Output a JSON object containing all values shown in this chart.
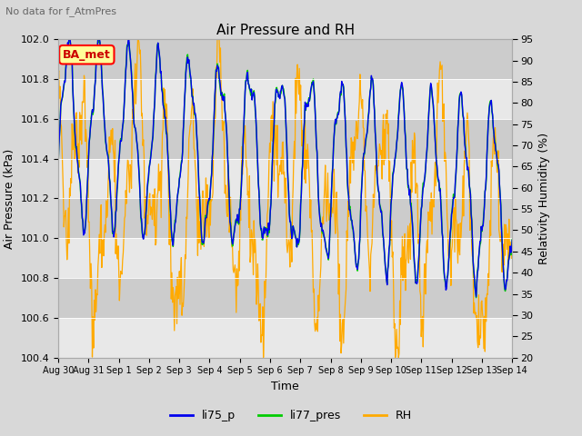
{
  "title": "Air Pressure and RH",
  "subtitle": "No data for f_AtmPres",
  "xlabel": "Time",
  "ylabel_left": "Air Pressure (kPa)",
  "ylabel_right": "Relativity Humidity (%)",
  "ylim_left": [
    100.4,
    102.0
  ],
  "ylim_right": [
    20,
    95
  ],
  "yticks_left": [
    100.4,
    100.6,
    100.8,
    101.0,
    101.2,
    101.4,
    101.6,
    101.8,
    102.0
  ],
  "yticks_right": [
    20,
    25,
    30,
    35,
    40,
    45,
    50,
    55,
    60,
    65,
    70,
    75,
    80,
    85,
    90,
    95
  ],
  "xtick_labels": [
    "Aug 30",
    "Aug 31",
    "Sep 1",
    "Sep 2",
    "Sep 3",
    "Sep 4",
    "Sep 5",
    "Sep 6",
    "Sep 7",
    "Sep 8",
    "Sep 9",
    "Sep 10",
    "Sep 11",
    "Sep 12",
    "Sep 13",
    "Sep 14"
  ],
  "legend_labels": [
    "li75_p",
    "li77_pres",
    "RH"
  ],
  "line_colors": [
    "#0000ee",
    "#00cc00",
    "#ffaa00"
  ],
  "bg_color": "#d8d8d8",
  "band_dark": "#cccccc",
  "band_light": "#e8e8e8",
  "annotation_box": "BA_met",
  "annotation_box_color": "#ffff99",
  "annotation_box_border": "#ff0000",
  "annotation_text_color": "#cc0000"
}
